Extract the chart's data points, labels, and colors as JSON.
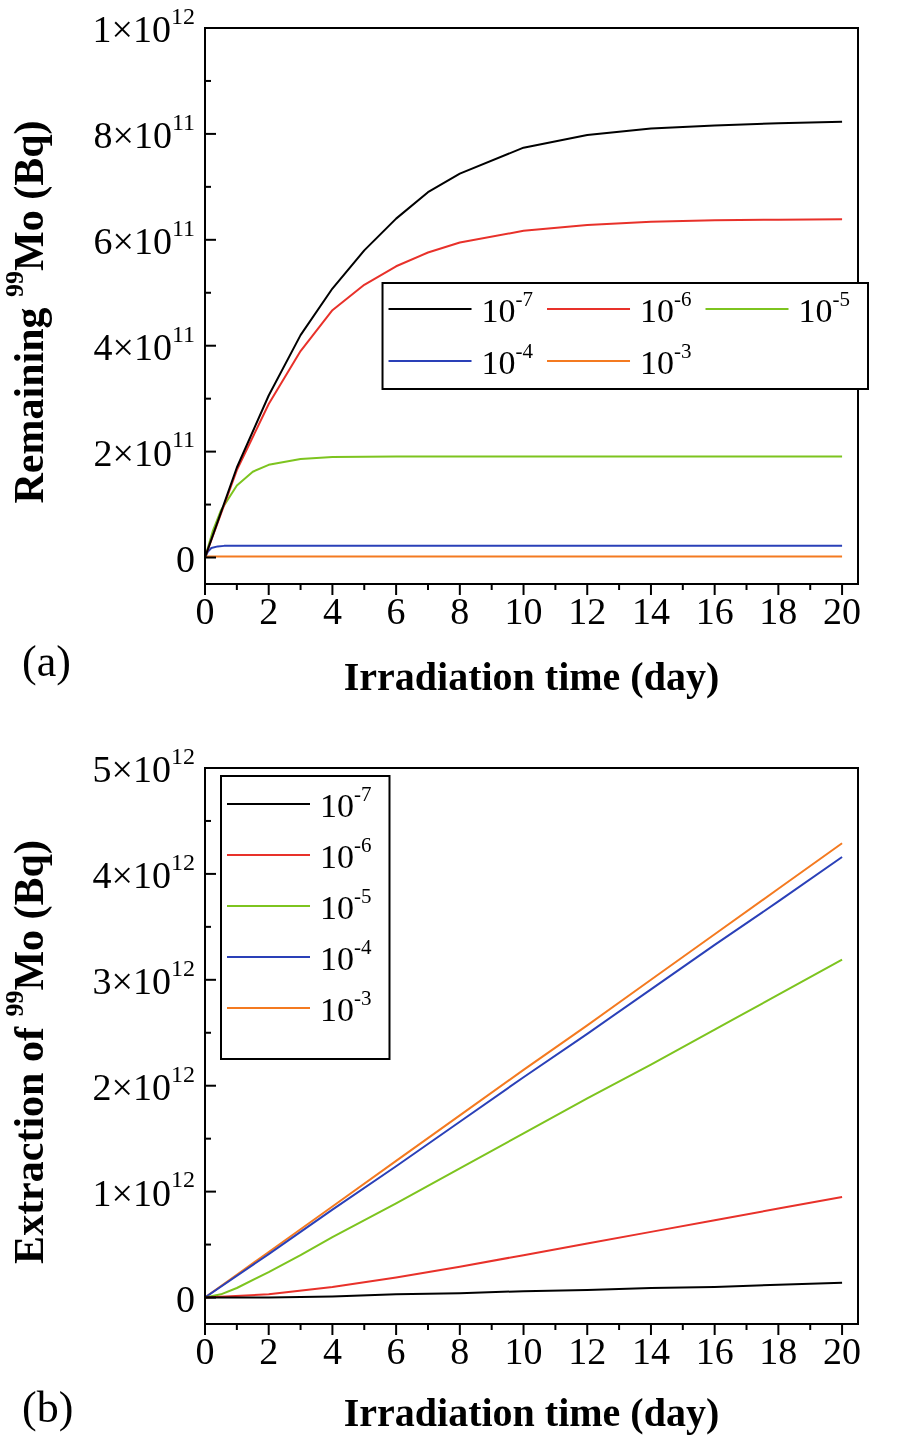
{
  "chart_data": [
    {
      "type": "line",
      "xlabel": "Irradiation time (day)",
      "ylabel": "Remaining $^{99}$Mo (Bq)",
      "annotations": [
        "(a)"
      ],
      "xlim": [
        0,
        20.5
      ],
      "ylim": [
        -50000000000.0,
        1000000000000.0
      ],
      "xticks": [
        0,
        {
          "value": 1,
          "label": null
        },
        2,
        {
          "value": 3,
          "label": null
        },
        4,
        {
          "value": 5,
          "label": null
        },
        6,
        {
          "value": 7,
          "label": null
        },
        8,
        {
          "value": 9,
          "label": null
        },
        10,
        {
          "value": 11,
          "label": null
        },
        12,
        {
          "value": 13,
          "label": null
        },
        14,
        {
          "value": 15,
          "label": null
        },
        16,
        {
          "value": 17,
          "label": null
        },
        18,
        {
          "value": 19,
          "label": null
        },
        20
      ],
      "yticks": [
        {
          "value": 0,
          "label": "0"
        },
        {
          "value": 100000000000.0,
          "label": null
        },
        {
          "value": 200000000000.0,
          "label": "2×10$^{11}$"
        },
        {
          "value": 300000000000.0,
          "label": null
        },
        {
          "value": 400000000000.0,
          "label": "4×10$^{11}$"
        },
        {
          "value": 500000000000.0,
          "label": null
        },
        {
          "value": 600000000000.0,
          "label": "6×10$^{11}$"
        },
        {
          "value": 700000000000.0,
          "label": null
        },
        {
          "value": 800000000000.0,
          "label": "8×10$^{11}$"
        },
        {
          "value": 900000000000.0,
          "label": null
        },
        {
          "value": 1000000000000.0,
          "label": "1×10$^{12}$"
        }
      ],
      "legend": "right",
      "series": [
        {
          "name": "10$^{-7}$",
          "color": "#000000",
          "x": [
            0,
            1,
            2,
            3,
            4,
            5,
            6,
            7,
            8,
            10,
            12,
            14,
            16,
            18,
            20
          ],
          "values": [
            0,
            170000000000.0,
            306000000000.0,
            420000000000.0,
            508000000000.0,
            580000000000.0,
            640000000000.0,
            690000000000.0,
            725000000000.0,
            774000000000.0,
            798000000000.0,
            810000000000.0,
            816000000000.0,
            820000000000.0,
            823000000000.0
          ]
        },
        {
          "name": "10$^{-6}$",
          "color": "#e8312a",
          "x": [
            0,
            1,
            2,
            3,
            4,
            5,
            6,
            7,
            8,
            10,
            12,
            14,
            16,
            18,
            20
          ],
          "values": [
            0,
            165000000000.0,
            290000000000.0,
            390000000000.0,
            467000000000.0,
            515000000000.0,
            550000000000.0,
            576000000000.0,
            595000000000.0,
            617000000000.0,
            628000000000.0,
            634000000000.0,
            637000000000.0,
            638000000000.0,
            639000000000.0
          ]
        },
        {
          "name": "10$^{-5}$",
          "color": "#7dc41f",
          "x": [
            0,
            0.25,
            0.5,
            1,
            1.5,
            2,
            3,
            4,
            6,
            20
          ],
          "values": [
            0,
            51000000000.0,
            89000000000.0,
            136000000000.0,
            162000000000.0,
            175000000000.0,
            186000000000.0,
            190000000000.0,
            191000000000.0,
            191000000000.0
          ]
        },
        {
          "name": "10$^{-4}$",
          "color": "#2a40b8",
          "x": [
            0,
            0.1,
            0.2,
            0.4,
            0.6,
            20
          ],
          "values": [
            0,
            12000000000.0,
            18000000000.0,
            21000000000.0,
            22000000000.0,
            22000000000.0
          ]
        },
        {
          "name": "10$^{-3}$",
          "color": "#f47a20",
          "x": [
            0,
            0.05,
            20
          ],
          "values": [
            0,
            2000000000.0,
            2000000000.0
          ]
        }
      ]
    },
    {
      "type": "line",
      "xlabel": "Irradiation time (day)",
      "ylabel": "Extraction of $^{99}$Mo (Bq)",
      "annotations": [
        "(b)"
      ],
      "xlim": [
        0,
        20.5
      ],
      "ylim": [
        -250000000000.0,
        5000000000000.0
      ],
      "xticks": [
        0,
        {
          "value": 1,
          "label": null
        },
        2,
        {
          "value": 3,
          "label": null
        },
        4,
        {
          "value": 5,
          "label": null
        },
        6,
        {
          "value": 7,
          "label": null
        },
        8,
        {
          "value": 9,
          "label": null
        },
        10,
        {
          "value": 11,
          "label": null
        },
        12,
        {
          "value": 13,
          "label": null
        },
        14,
        {
          "value": 15,
          "label": null
        },
        16,
        {
          "value": 17,
          "label": null
        },
        18,
        {
          "value": 19,
          "label": null
        },
        20
      ],
      "yticks": [
        {
          "value": 0,
          "label": "0"
        },
        {
          "value": 500000000000.0,
          "label": null
        },
        {
          "value": 1000000000000.0,
          "label": "1×10$^{12}$"
        },
        {
          "value": 1500000000000.0,
          "label": null
        },
        {
          "value": 2000000000000.0,
          "label": "2×10$^{12}$"
        },
        {
          "value": 2500000000000.0,
          "label": null
        },
        {
          "value": 3000000000000.0,
          "label": "3×10$^{12}$"
        },
        {
          "value": 3500000000000.0,
          "label": null
        },
        {
          "value": 4000000000000.0,
          "label": "4×10$^{12}$"
        },
        {
          "value": 4500000000000.0,
          "label": null
        },
        {
          "value": 5000000000000.0,
          "label": "5×10$^{12}$"
        }
      ],
      "legend": "top left",
      "series": [
        {
          "name": "10$^{-7}$",
          "color": "#000000",
          "x": [
            0,
            2,
            4,
            6,
            8,
            10,
            12,
            14,
            16,
            18,
            20
          ],
          "values": [
            0,
            0,
            10000000000.0,
            30000000000.0,
            40000000000.0,
            60000000000.0,
            70000000000.0,
            90000000000.0,
            100000000000.0,
            120000000000.0,
            140000000000.0
          ]
        },
        {
          "name": "10$^{-6}$",
          "color": "#e8312a",
          "x": [
            0,
            2,
            4,
            6,
            8,
            10,
            12,
            14,
            16,
            18,
            20
          ],
          "values": [
            0,
            30000000000.0,
            100000000000.0,
            190000000000.0,
            290000000000.0,
            400000000000.0,
            510000000000.0,
            620000000000.0,
            730000000000.0,
            840000000000.0,
            950000000000.0
          ]
        },
        {
          "name": "10$^{-5}$",
          "color": "#7dc41f",
          "x": [
            0,
            0.5,
            1,
            2,
            3,
            4,
            6,
            8,
            10,
            12,
            14,
            16,
            18,
            20
          ],
          "values": [
            0,
            30000000000.0,
            90000000000.0,
            240000000000.0,
            400000000000.0,
            570000000000.0,
            890000000000.0,
            1220000000000.0,
            1550000000000.0,
            1880000000000.0,
            2200000000000.0,
            2530000000000.0,
            2860000000000.0,
            3190000000000.0
          ]
        },
        {
          "name": "10$^{-4}$",
          "color": "#2a40b8",
          "x": [
            0,
            2,
            4,
            6,
            8,
            10,
            12,
            14,
            16,
            18,
            20
          ],
          "values": [
            0,
            410000000000.0,
            830000000000.0,
            1240000000000.0,
            1660000000000.0,
            2080000000000.0,
            2490000000000.0,
            2910000000000.0,
            3330000000000.0,
            3740000000000.0,
            4160000000000.0
          ]
        },
        {
          "name": "10$^{-3}$",
          "color": "#f47a20",
          "x": [
            0,
            2,
            4,
            6,
            8,
            10,
            12,
            14,
            16,
            18,
            20
          ],
          "values": [
            0,
            430000000000.0,
            860000000000.0,
            1290000000000.0,
            1720000000000.0,
            2150000000000.0,
            2570000000000.0,
            3000000000000.0,
            3430000000000.0,
            3860000000000.0,
            4290000000000.0
          ]
        }
      ]
    }
  ]
}
